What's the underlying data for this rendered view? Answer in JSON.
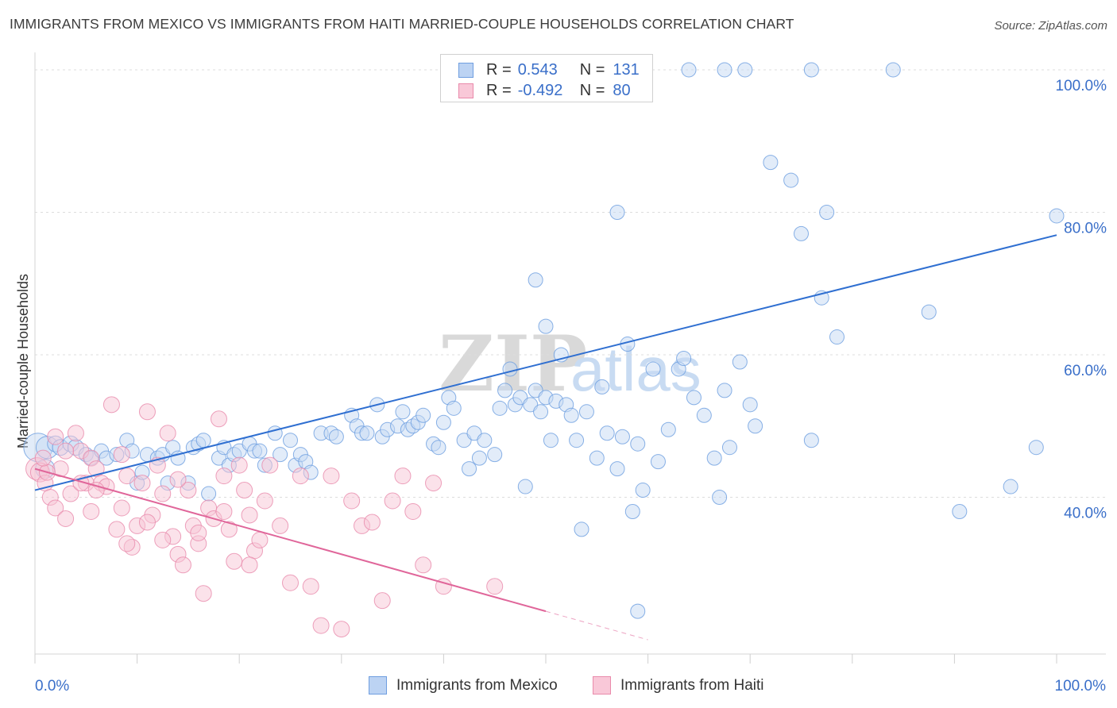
{
  "header": {
    "title": "IMMIGRANTS FROM MEXICO VS IMMIGRANTS FROM HAITI MARRIED-COUPLE HOUSEHOLDS CORRELATION CHART",
    "source": "Source: ZipAtlas.com"
  },
  "watermark": {
    "zip": "ZIP",
    "atlas": "atlas"
  },
  "legend": {
    "rows": [
      {
        "r_label": "R =",
        "r_value": "0.543",
        "n_label": "N =",
        "n_value": "131",
        "color": "#a9c6f0",
        "border": "#6f9ee0"
      },
      {
        "r_label": "R =",
        "r_value": "-0.492",
        "n_label": "N =",
        "n_value": "80",
        "color": "#f7b9cd",
        "border": "#e98aab"
      }
    ]
  },
  "bottom_legend": {
    "mexico": "Immigrants from Mexico",
    "haiti": "Immigrants from Haiti"
  },
  "chart_data": {
    "type": "scatter",
    "title": "IMMIGRANTS FROM MEXICO VS IMMIGRANTS FROM HAITI MARRIED-COUPLE HOUSEHOLDS CORRELATION CHART",
    "xlabel": "",
    "ylabel": "Married-couple Households",
    "xlim": [
      0,
      100
    ],
    "ylim": [
      18,
      102
    ],
    "x_tick_labels": [
      "0.0%",
      "100.0%"
    ],
    "y_ticks": [
      40,
      60,
      80,
      100
    ],
    "y_tick_labels": [
      "40.0%",
      "60.0%",
      "80.0%",
      "100.0%"
    ],
    "grid": true,
    "colors": {
      "mexico": "#6b9de0",
      "mexico_fill": "#c5d9f4",
      "haiti": "#e98aab",
      "haiti_fill": "#f7c6d6",
      "mexico_line": "#2f6fd1",
      "haiti_line": "#e0669a",
      "axis_label": "#3a6fc9"
    },
    "series": [
      {
        "name": "Immigrants from Mexico",
        "trend": {
          "x": [
            0,
            100
          ],
          "y": [
            41.0,
            76.8
          ]
        },
        "points": [
          [
            0.3,
            47.0,
            18
          ],
          [
            1.0,
            44.0,
            12
          ],
          [
            1.2,
            47.0,
            14
          ],
          [
            2.0,
            47.5,
            10
          ],
          [
            2.5,
            47.0,
            10
          ],
          [
            3.5,
            47.5,
            10
          ],
          [
            4.0,
            47.0,
            10
          ],
          [
            5.0,
            46.0,
            9
          ],
          [
            5.5,
            45.5,
            9
          ],
          [
            6.5,
            46.5,
            9
          ],
          [
            7.0,
            45.5,
            9
          ],
          [
            8.0,
            46.0,
            9
          ],
          [
            9.0,
            48.0,
            9
          ],
          [
            9.5,
            46.5,
            9
          ],
          [
            10.0,
            42.0,
            9
          ],
          [
            10.5,
            43.5,
            9
          ],
          [
            11.0,
            46.0,
            9
          ],
          [
            12.0,
            45.5,
            9
          ],
          [
            12.5,
            46.0,
            9
          ],
          [
            13.0,
            42.0,
            9
          ],
          [
            13.5,
            47.0,
            9
          ],
          [
            14.0,
            45.5,
            9
          ],
          [
            15.0,
            42.0,
            9
          ],
          [
            15.5,
            47.0,
            9
          ],
          [
            16.0,
            47.5,
            9
          ],
          [
            16.5,
            48.0,
            9
          ],
          [
            17.0,
            40.5,
            9
          ],
          [
            18.0,
            45.5,
            9
          ],
          [
            18.5,
            47.0,
            9
          ],
          [
            19.0,
            44.5,
            9
          ],
          [
            19.5,
            46.0,
            9
          ],
          [
            20.0,
            46.5,
            9
          ],
          [
            21.0,
            47.5,
            9
          ],
          [
            21.5,
            46.5,
            9
          ],
          [
            22.0,
            46.5,
            9
          ],
          [
            22.5,
            44.5,
            9
          ],
          [
            23.5,
            49.0,
            9
          ],
          [
            24.0,
            46.0,
            9
          ],
          [
            25.0,
            48.0,
            9
          ],
          [
            25.5,
            44.5,
            9
          ],
          [
            26.0,
            46.0,
            9
          ],
          [
            26.5,
            45.0,
            9
          ],
          [
            27.0,
            43.5,
            9
          ],
          [
            28.0,
            49.0,
            9
          ],
          [
            29.0,
            49.0,
            9
          ],
          [
            29.5,
            48.5,
            9
          ],
          [
            31.0,
            51.5,
            9
          ],
          [
            31.5,
            50.0,
            9
          ],
          [
            32.0,
            49.0,
            9
          ],
          [
            32.5,
            49.0,
            9
          ],
          [
            33.5,
            53.0,
            9
          ],
          [
            34.0,
            48.5,
            9
          ],
          [
            34.5,
            49.5,
            9
          ],
          [
            35.5,
            50.0,
            9
          ],
          [
            36.0,
            52.0,
            9
          ],
          [
            36.5,
            49.5,
            9
          ],
          [
            37.0,
            50.0,
            9
          ],
          [
            37.5,
            50.5,
            9
          ],
          [
            38.0,
            51.5,
            9
          ],
          [
            39.0,
            47.5,
            9
          ],
          [
            39.5,
            47.0,
            9
          ],
          [
            40.0,
            50.5,
            9
          ],
          [
            40.5,
            54.0,
            9
          ],
          [
            41.0,
            52.5,
            9
          ],
          [
            42.0,
            48.0,
            9
          ],
          [
            42.5,
            44.0,
            9
          ],
          [
            43.0,
            49.0,
            9
          ],
          [
            43.5,
            45.5,
            9
          ],
          [
            44.0,
            48.0,
            9
          ],
          [
            45.0,
            46.0,
            9
          ],
          [
            45.5,
            52.5,
            9
          ],
          [
            46.0,
            55.0,
            9
          ],
          [
            46.5,
            58.0,
            9
          ],
          [
            47.0,
            53.0,
            9
          ],
          [
            47.5,
            54.0,
            9
          ],
          [
            48.0,
            41.5,
            9
          ],
          [
            48.5,
            53.0,
            9
          ],
          [
            49.0,
            55.0,
            9
          ],
          [
            49.5,
            52.0,
            9
          ],
          [
            50.0,
            54.0,
            9
          ],
          [
            50.5,
            48.0,
            9
          ],
          [
            51.0,
            53.5,
            9
          ],
          [
            51.5,
            60.0,
            9
          ],
          [
            52.0,
            53.0,
            9
          ],
          [
            52.5,
            51.5,
            9
          ],
          [
            53.0,
            48.0,
            9
          ],
          [
            53.5,
            35.5,
            9
          ],
          [
            54.0,
            52.0,
            9
          ],
          [
            55.0,
            45.5,
            9
          ],
          [
            55.5,
            55.5,
            9
          ],
          [
            56.0,
            49.0,
            9
          ],
          [
            57.0,
            44.0,
            9
          ],
          [
            57.5,
            48.5,
            9
          ],
          [
            58.0,
            61.5,
            9
          ],
          [
            58.5,
            38.0,
            9
          ],
          [
            59.0,
            47.5,
            9
          ],
          [
            59.5,
            41.0,
            9
          ],
          [
            60.5,
            58.0,
            9
          ],
          [
            61.0,
            45.0,
            9
          ],
          [
            62.0,
            49.5,
            9
          ],
          [
            63.0,
            58.0,
            9
          ],
          [
            63.5,
            59.5,
            9
          ],
          [
            64.5,
            54.0,
            9
          ],
          [
            65.5,
            51.5,
            9
          ],
          [
            66.5,
            45.5,
            9
          ],
          [
            67.0,
            40.0,
            9
          ],
          [
            67.5,
            55.0,
            9
          ],
          [
            68.0,
            47.0,
            9
          ],
          [
            69.0,
            59.0,
            9
          ],
          [
            70.0,
            53.0,
            9
          ],
          [
            70.5,
            50.0,
            9
          ],
          [
            72.0,
            87.0,
            9
          ],
          [
            74.0,
            84.5,
            9
          ],
          [
            75.0,
            77.0,
            9
          ],
          [
            76.0,
            48.0,
            9
          ],
          [
            77.0,
            68.0,
            9
          ],
          [
            77.5,
            80.0,
            9
          ],
          [
            78.5,
            62.5,
            9
          ],
          [
            50.0,
            64.0,
            9
          ],
          [
            49.0,
            70.5,
            9
          ],
          [
            57.0,
            80.0,
            9
          ],
          [
            64.0,
            100.0,
            9
          ],
          [
            67.5,
            100.0,
            9
          ],
          [
            69.5,
            100.0,
            9
          ],
          [
            76.0,
            100.0,
            9
          ],
          [
            84.0,
            100.0,
            9
          ],
          [
            87.5,
            66.0,
            9
          ],
          [
            90.5,
            38.0,
            9
          ],
          [
            95.5,
            41.5,
            9
          ],
          [
            98.0,
            47.0,
            9
          ],
          [
            100.0,
            79.5,
            9
          ],
          [
            59.0,
            24.0,
            9
          ]
        ]
      },
      {
        "name": "Immigrants from Haiti",
        "trend": {
          "x": [
            0,
            50
          ],
          "y": [
            44.0,
            24.0
          ]
        },
        "trend_dashed": {
          "x": [
            50,
            60
          ],
          "y": [
            24.0,
            20.0
          ]
        },
        "points": [
          [
            0.2,
            44.0,
            14
          ],
          [
            0.5,
            43.5,
            12
          ],
          [
            1.0,
            42.0,
            10
          ],
          [
            1.5,
            40.0,
            10
          ],
          [
            2.0,
            38.5,
            10
          ],
          [
            2.5,
            44.0,
            10
          ],
          [
            3.0,
            37.0,
            10
          ],
          [
            3.5,
            40.5,
            10
          ],
          [
            4.0,
            49.0,
            10
          ],
          [
            4.5,
            46.5,
            10
          ],
          [
            5.0,
            42.0,
            10
          ],
          [
            5.5,
            45.5,
            10
          ],
          [
            6.0,
            44.0,
            10
          ],
          [
            6.5,
            42.0,
            10
          ],
          [
            7.0,
            41.5,
            10
          ],
          [
            7.5,
            53.0,
            10
          ],
          [
            8.0,
            35.5,
            10
          ],
          [
            8.5,
            38.5,
            10
          ],
          [
            9.0,
            43.0,
            10
          ],
          [
            9.5,
            33.0,
            10
          ],
          [
            10.0,
            36.0,
            10
          ],
          [
            10.5,
            42.0,
            10
          ],
          [
            11.0,
            52.0,
            10
          ],
          [
            11.5,
            37.5,
            10
          ],
          [
            12.0,
            44.5,
            10
          ],
          [
            12.5,
            40.5,
            10
          ],
          [
            13.0,
            49.0,
            10
          ],
          [
            13.5,
            34.5,
            10
          ],
          [
            14.0,
            32.0,
            10
          ],
          [
            14.5,
            30.5,
            10
          ],
          [
            15.0,
            41.0,
            10
          ],
          [
            15.5,
            36.0,
            10
          ],
          [
            16.0,
            33.5,
            10
          ],
          [
            16.5,
            26.5,
            10
          ],
          [
            17.0,
            38.5,
            10
          ],
          [
            17.5,
            37.0,
            10
          ],
          [
            18.0,
            51.0,
            10
          ],
          [
            18.5,
            43.0,
            10
          ],
          [
            19.0,
            35.5,
            10
          ],
          [
            19.5,
            31.0,
            10
          ],
          [
            20.0,
            44.5,
            10
          ],
          [
            20.5,
            41.0,
            10
          ],
          [
            21.0,
            37.5,
            10
          ],
          [
            21.5,
            32.5,
            10
          ],
          [
            22.0,
            34.0,
            10
          ],
          [
            22.5,
            39.5,
            10
          ],
          [
            23.0,
            44.5,
            10
          ],
          [
            24.0,
            36.0,
            10
          ],
          [
            25.0,
            28.0,
            10
          ],
          [
            26.0,
            43.0,
            10
          ],
          [
            27.0,
            27.5,
            10
          ],
          [
            28.0,
            22.0,
            10
          ],
          [
            29.0,
            43.0,
            10
          ],
          [
            30.0,
            21.5,
            10
          ],
          [
            31.0,
            39.5,
            10
          ],
          [
            32.0,
            36.0,
            10
          ],
          [
            33.0,
            36.5,
            10
          ],
          [
            34.0,
            25.5,
            10
          ],
          [
            35.0,
            39.5,
            10
          ],
          [
            36.0,
            43.0,
            10
          ],
          [
            37.0,
            38.0,
            10
          ],
          [
            38.0,
            30.5,
            10
          ],
          [
            39.0,
            42.0,
            10
          ],
          [
            40.0,
            27.5,
            10
          ],
          [
            45.0,
            27.5,
            10
          ],
          [
            12.5,
            34.0,
            10
          ],
          [
            8.5,
            46.0,
            10
          ],
          [
            6.0,
            41.0,
            10
          ],
          [
            3.0,
            46.5,
            10
          ],
          [
            2.0,
            48.5,
            10
          ],
          [
            1.2,
            43.5,
            10
          ],
          [
            0.8,
            45.5,
            10
          ],
          [
            4.5,
            42.0,
            10
          ],
          [
            5.5,
            38.0,
            10
          ],
          [
            9.0,
            33.5,
            10
          ],
          [
            11.0,
            36.5,
            10
          ],
          [
            16.0,
            35.0,
            10
          ],
          [
            18.5,
            38.0,
            10
          ],
          [
            21.0,
            30.5,
            10
          ],
          [
            14.0,
            42.5,
            10
          ]
        ]
      }
    ]
  }
}
